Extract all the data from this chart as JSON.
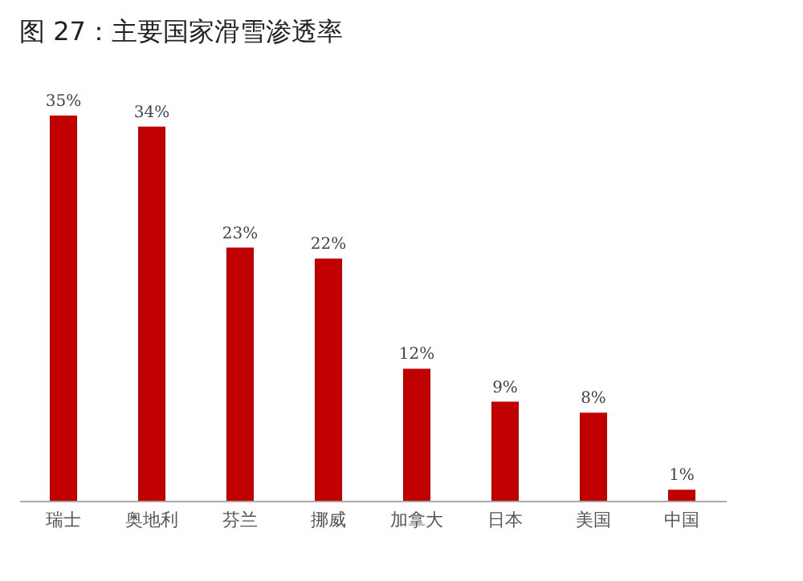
{
  "chart_data": {
    "type": "bar",
    "title": "图 27：主要国家滑雪渗透率",
    "categories": [
      "瑞士",
      "奥地利",
      "芬兰",
      "挪威",
      "加拿大",
      "日本",
      "美国",
      "中国"
    ],
    "values": [
      35,
      34,
      23,
      22,
      12,
      9,
      8,
      1
    ],
    "value_labels": [
      "35%",
      "34%",
      "23%",
      "22%",
      "12%",
      "9%",
      "8%",
      "1%"
    ],
    "color": "#c00000",
    "grid": false
  }
}
